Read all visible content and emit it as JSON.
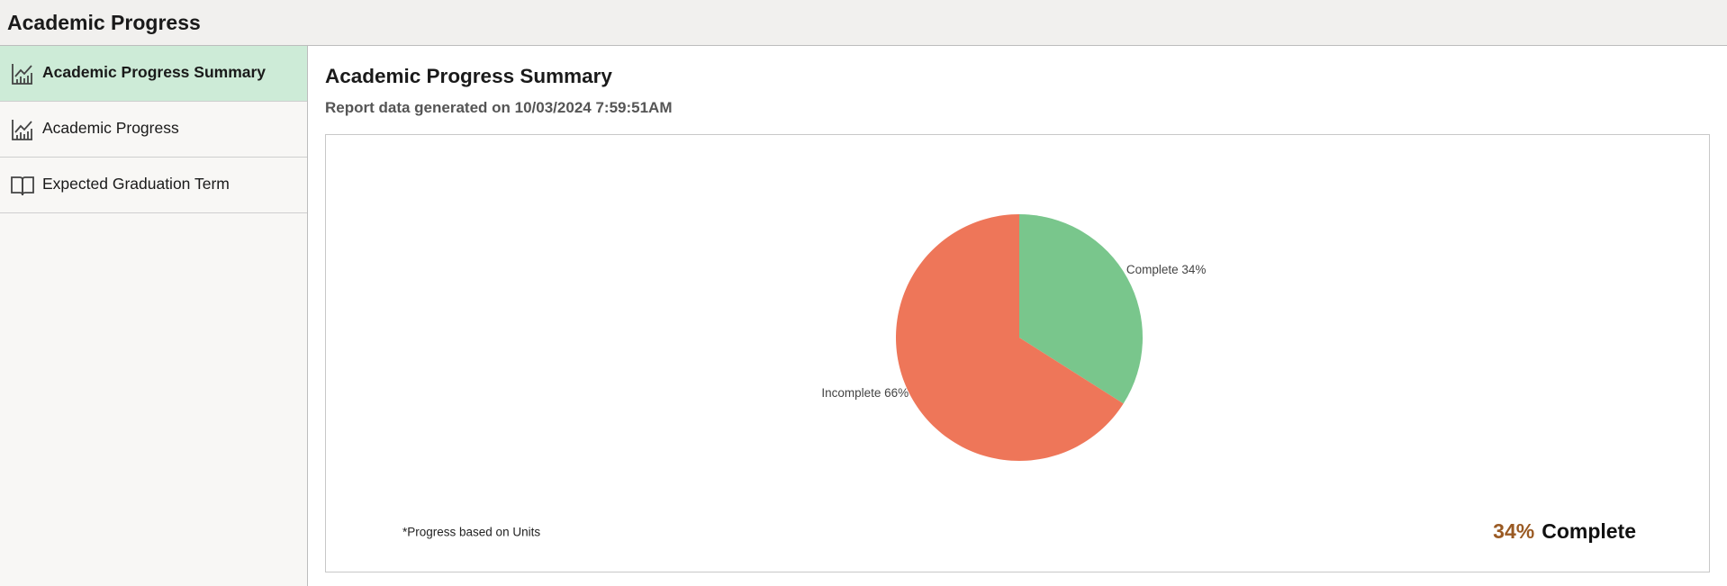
{
  "header": {
    "title": "Academic Progress"
  },
  "nav": {
    "items": [
      {
        "label": "Academic Progress Summary",
        "selected": true
      },
      {
        "label": "Academic Progress",
        "selected": false
      },
      {
        "label": "Expected Graduation Term",
        "selected": false
      }
    ]
  },
  "main": {
    "title": "Academic Progress Summary",
    "subtitle": "Report data generated on 10/03/2024 7:59:51AM"
  },
  "chart_data": {
    "type": "pie",
    "categories": [
      "Complete",
      "Incomplete"
    ],
    "values": [
      34,
      66
    ],
    "value_labels": [
      "Complete 34%",
      "Incomplete 66%"
    ],
    "colors": [
      "#79c68c",
      "#ee7659"
    ],
    "footnote": "*Progress based on Units",
    "summary": {
      "percent": "34%",
      "text": "Complete"
    }
  }
}
